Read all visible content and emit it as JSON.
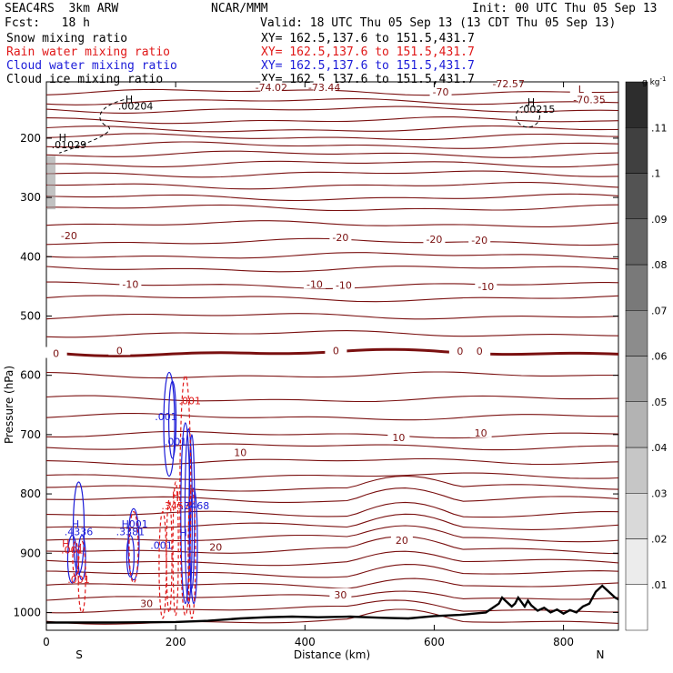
{
  "header": {
    "model": "SEAC4RS  3km ARW",
    "center": "NCAR/MMM",
    "init": "Init: 00 UTC Thu 05 Sep 13",
    "fcst": "Fcst:   18 h",
    "valid": "Valid: 18 UTC Thu 05 Sep 13 (13 CDT Thu 05 Sep 13)"
  },
  "fields": [
    {
      "name": "Snow mixing ratio",
      "xy": "XY= 162.5,137.6 to 151.5,431.7",
      "color": "#000000"
    },
    {
      "name": "Rain water mixing ratio",
      "xy": "XY= 162.5,137.6 to 151.5,431.7",
      "color": "#e01818"
    },
    {
      "name": "Cloud water mixing ratio",
      "xy": "XY= 162.5,137.6 to 151.5,431.7",
      "color": "#1c1cd8"
    },
    {
      "name": "Cloud ice mixing ratio",
      "xy": "XY= 162.5,137.6 to 151.5,431.7",
      "color": "#000000"
    }
  ],
  "chart_data": {
    "type": "cross-section contour",
    "xlabel": "Distance (km)",
    "ylabel": "Pressure (hPa)",
    "xlim": [
      0,
      885
    ],
    "ylim": [
      1030,
      105
    ],
    "x_ticks": [
      "0",
      "200",
      "400",
      "600",
      "800"
    ],
    "y_ticks": [
      "200",
      "300",
      "400",
      "500",
      "600",
      "700",
      "800",
      "900",
      "1000"
    ],
    "x_tick_values": [
      0,
      200,
      400,
      600,
      800
    ],
    "y_tick_values": [
      200,
      300,
      400,
      500,
      600,
      700,
      800,
      900,
      1000
    ],
    "endpoints": {
      "left": "S",
      "right": "N"
    },
    "colorbar": {
      "unit": "g kg",
      "unit_exp": "-1",
      "labels": [
        ".01",
        ".02",
        ".03",
        ".04",
        ".05",
        ".06",
        ".07",
        ".08",
        ".09",
        ".1",
        ".11"
      ],
      "values": [
        0.01,
        0.02,
        0.03,
        0.04,
        0.05,
        0.06,
        0.07,
        0.08,
        0.09,
        0.1,
        0.11
      ],
      "max": 0.12
    },
    "temperature_isotherms": {
      "color": "#7a1010",
      "levels_p": [
        1015,
        995,
        975,
        955,
        935,
        915,
        895,
        875,
        855,
        835,
        810,
        790,
        770,
        745,
        720,
        700,
        670,
        640,
        600,
        562,
        530,
        500,
        470,
        448,
        420,
        398,
        375,
        345,
        318,
        300,
        280,
        260,
        243,
        227,
        212,
        198,
        185,
        170,
        152,
        138,
        122
      ],
      "labels": [
        {
          "text": "30",
          "x": 155,
          "p": 985
        },
        {
          "text": "30",
          "x": 455,
          "p": 970
        },
        {
          "text": "20",
          "x": 262,
          "p": 890
        },
        {
          "text": "20",
          "x": 550,
          "p": 878
        },
        {
          "text": "10",
          "x": 300,
          "p": 730
        },
        {
          "text": "10",
          "x": 545,
          "p": 705
        },
        {
          "text": "10",
          "x": 672,
          "p": 697
        },
        {
          "text": "0",
          "x": 15,
          "p": 563
        },
        {
          "text": "0",
          "x": 113,
          "p": 558
        },
        {
          "text": "0",
          "x": 448,
          "p": 558
        },
        {
          "text": "0",
          "x": 640,
          "p": 559
        },
        {
          "text": "0",
          "x": 670,
          "p": 559
        },
        {
          "text": "-10",
          "x": 130,
          "p": 446
        },
        {
          "text": "-10",
          "x": 415,
          "p": 446
        },
        {
          "text": "-10",
          "x": 460,
          "p": 448
        },
        {
          "text": "-10",
          "x": 680,
          "p": 450
        },
        {
          "text": "-20",
          "x": 35,
          "p": 364
        },
        {
          "text": "-20",
          "x": 455,
          "p": 367
        },
        {
          "text": "-20",
          "x": 600,
          "p": 370
        },
        {
          "text": "-20",
          "x": 670,
          "p": 372
        },
        {
          "text": "-74.02",
          "x": 348,
          "p": 114
        },
        {
          "text": "-73.44",
          "x": 430,
          "p": 114
        },
        {
          "text": "-72.57",
          "x": 715,
          "p": 108
        },
        {
          "text": "-70",
          "x": 610,
          "p": 122
        },
        {
          "text": "-70.35",
          "x": 840,
          "p": 135
        },
        {
          "text": "L",
          "x": 827,
          "p": 117
        }
      ]
    },
    "terrain": {
      "x": [
        0,
        100,
        200,
        250,
        300,
        340,
        380,
        420,
        470,
        520,
        560,
        600,
        640,
        680,
        700,
        705,
        710,
        720,
        725,
        730,
        740,
        745,
        750,
        760,
        770,
        780,
        790,
        800,
        810,
        820,
        830,
        840,
        850,
        860,
        870,
        880,
        885
      ],
      "p": [
        1017,
        1017,
        1016,
        1014,
        1010,
        1008,
        1007,
        1008,
        1007,
        1009,
        1010,
        1006,
        1004,
        1000,
        985,
        975,
        980,
        990,
        985,
        975,
        990,
        980,
        988,
        997,
        992,
        1000,
        995,
        1002,
        996,
        1000,
        990,
        985,
        965,
        955,
        965,
        975,
        978
      ]
    },
    "maxima_labels": [
      {
        "text": "H",
        "x": 128,
        "p": 140,
        "color": "#000"
      },
      {
        "text": ".00204",
        "x": 138,
        "p": 152,
        "color": "#000"
      },
      {
        "text": "H",
        "x": 25,
        "p": 205,
        "color": "#000"
      },
      {
        "text": ".01029",
        "x": 35,
        "p": 217,
        "color": "#000"
      },
      {
        "text": "H",
        "x": 750,
        "p": 145,
        "color": "#000"
      },
      {
        "text": ".00215",
        "x": 760,
        "p": 157,
        "color": "#000"
      },
      {
        "text": "H",
        "x": 45,
        "p": 857,
        "color": "#1c1cd8"
      },
      {
        "text": ".4336",
        "x": 50,
        "p": 870,
        "color": "#1c1cd8"
      },
      {
        "text": "H",
        "x": 122,
        "p": 857,
        "color": "#1c1cd8"
      },
      {
        "text": ".3381",
        "x": 130,
        "p": 870,
        "color": "#1c1cd8"
      },
      {
        "text": ".001",
        "x": 140,
        "p": 857,
        "color": "#1c1cd8"
      },
      {
        "text": ".001",
        "x": 40,
        "p": 900,
        "color": "#e01818"
      },
      {
        "text": "H",
        "x": 30,
        "p": 890,
        "color": "#e01818"
      },
      {
        "text": ".001",
        "x": 50,
        "p": 950,
        "color": "#e01818"
      },
      {
        "text": ".001",
        "x": 185,
        "p": 676,
        "color": "#1c1cd8"
      },
      {
        "text": ".001",
        "x": 222,
        "p": 649,
        "color": "#e01818"
      },
      {
        "text": ".001",
        "x": 200,
        "p": 718,
        "color": "#1c1cd8"
      },
      {
        "text": "H",
        "x": 200,
        "p": 808,
        "color": "#e01818"
      },
      {
        "text": ".3457",
        "x": 200,
        "p": 826,
        "color": "#e01818"
      },
      {
        "text": ".3468",
        "x": 230,
        "p": 826,
        "color": "#1c1cd8"
      },
      {
        "text": ".001",
        "x": 178,
        "p": 893,
        "color": "#1c1cd8"
      },
      {
        "text": "H",
        "x": 212,
        "p": 871,
        "color": "#1c1cd8"
      }
    ]
  }
}
